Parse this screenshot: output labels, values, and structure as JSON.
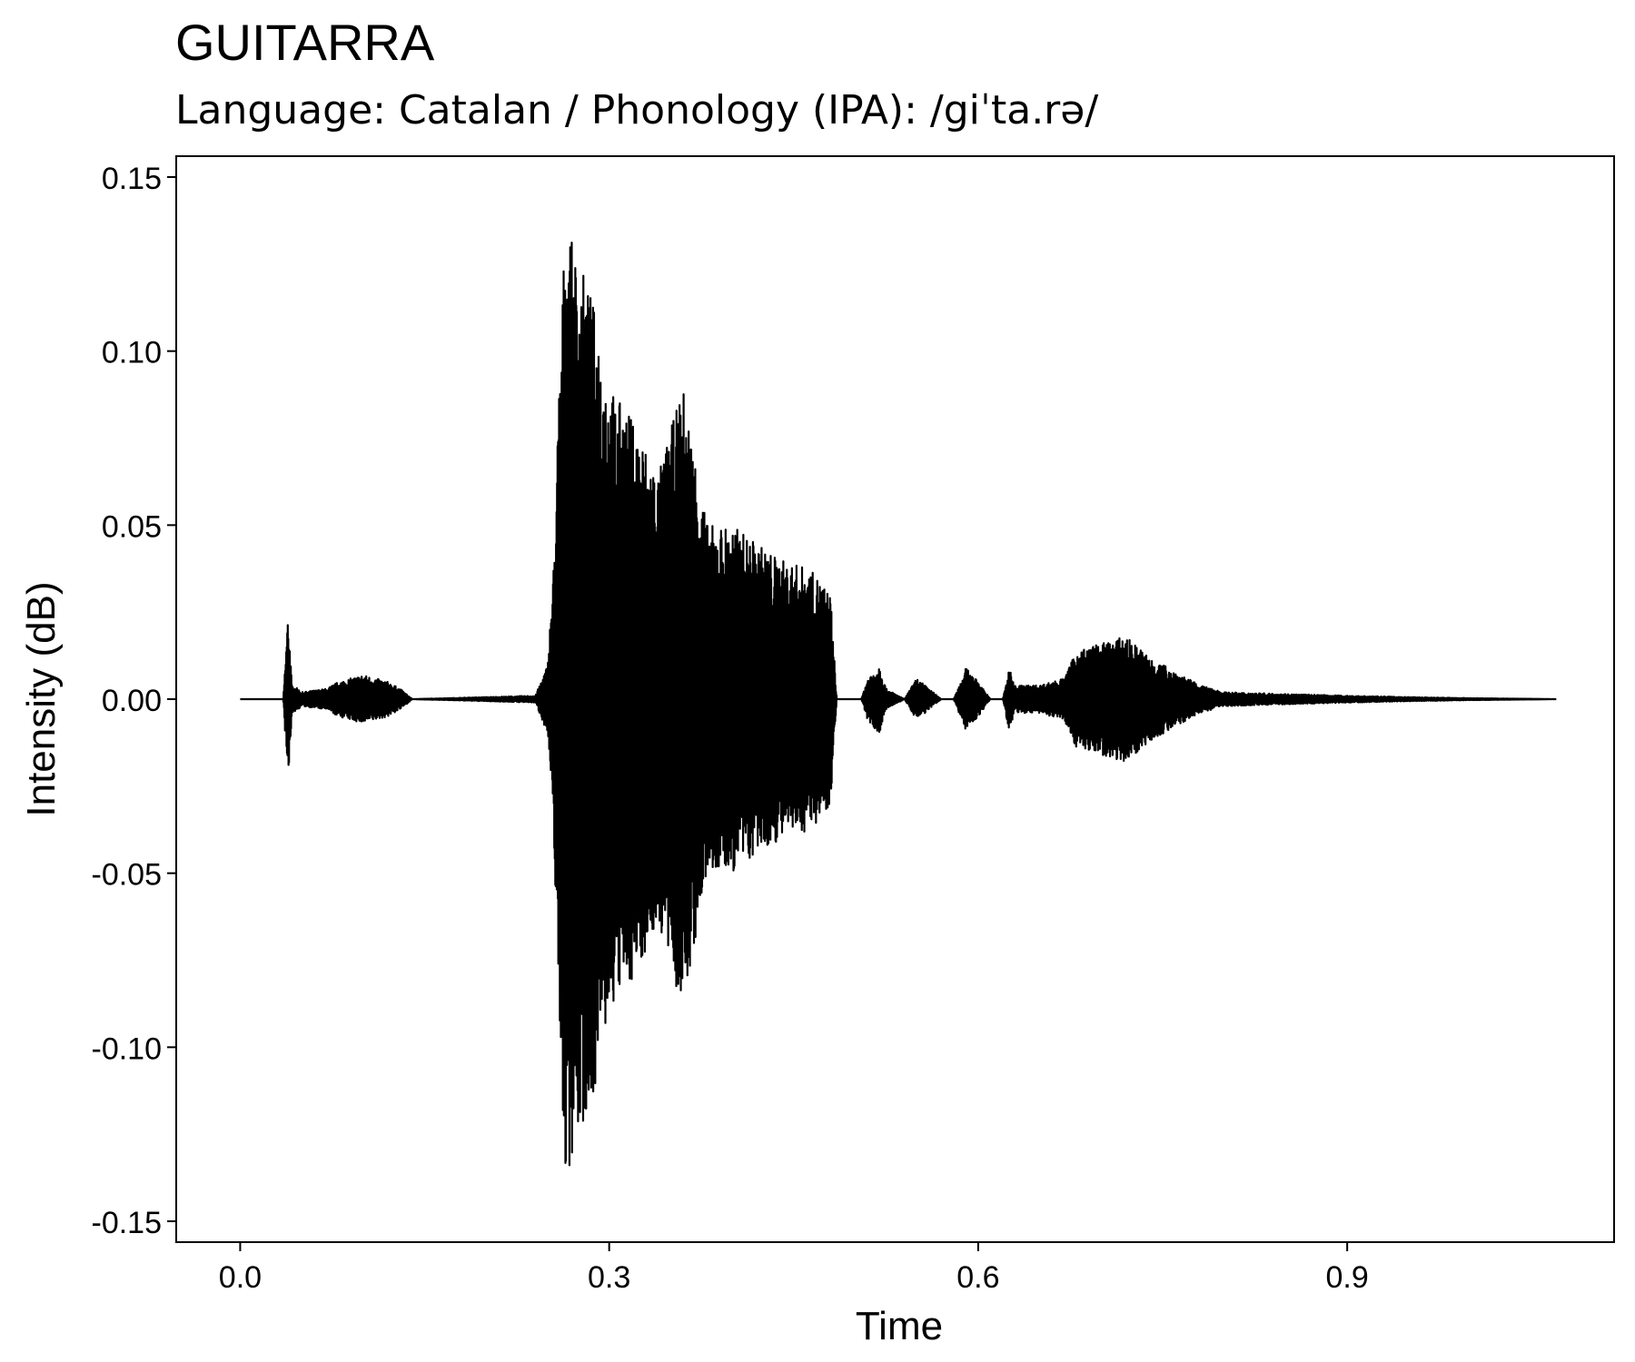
{
  "chart_data": {
    "type": "line",
    "title": "GUITARRA",
    "subtitle": "Language: Catalan / Phonology (IPA): /giˈta.rə/",
    "xlabel": "Time",
    "ylabel": "Intensity (dB)",
    "xlim": [
      -0.052,
      1.117
    ],
    "ylim": [
      -0.156,
      0.156
    ],
    "x_ticks": [
      0.0,
      0.3,
      0.6,
      0.9
    ],
    "x_tick_labels": [
      "0.0",
      "0.3",
      "0.6",
      "0.9"
    ],
    "y_ticks": [
      0.15,
      0.1,
      0.05,
      0.0,
      -0.05,
      -0.1,
      -0.15
    ],
    "y_tick_labels": [
      "0.15",
      "0.10",
      "0.05",
      "0.00",
      "-0.05",
      "-0.10",
      "-0.15"
    ],
    "grid": false,
    "legend": "none",
    "line_color": "#000000",
    "series": [
      {
        "x": [
          0.0,
          0.035,
          0.039,
          0.042,
          0.047,
          0.05,
          0.07,
          0.08,
          0.1,
          0.12,
          0.13,
          0.14,
          0.24,
          0.25,
          0.255,
          0.26,
          0.265,
          0.27,
          0.28,
          0.29,
          0.3,
          0.32,
          0.34,
          0.36,
          0.38,
          0.4,
          0.42,
          0.44,
          0.46,
          0.47,
          0.48,
          0.485,
          0.5,
          0.505,
          0.51,
          0.52,
          0.525,
          0.54,
          0.55,
          0.56,
          0.57,
          0.58,
          0.59,
          0.6,
          0.61,
          0.62,
          0.625,
          0.63,
          0.65,
          0.67,
          0.68,
          0.7,
          0.72,
          0.74,
          0.76,
          0.78,
          0.8,
          0.85,
          0.9,
          0.95,
          1.0,
          1.07
        ],
        "amp": [
          0.0,
          0.0,
          0.026,
          0.004,
          0.003,
          0.002,
          0.003,
          0.005,
          0.007,
          0.005,
          0.003,
          0.0,
          0.001,
          0.01,
          0.04,
          0.1,
          0.143,
          0.13,
          0.122,
          0.11,
          0.09,
          0.08,
          0.065,
          0.09,
          0.05,
          0.05,
          0.045,
          0.04,
          0.038,
          0.035,
          0.03,
          0.0,
          0.0,
          0.0,
          0.006,
          0.01,
          0.003,
          0.0,
          0.006,
          0.003,
          0.0,
          0.0,
          0.009,
          0.005,
          0.0,
          0.0,
          0.009,
          0.004,
          0.004,
          0.006,
          0.014,
          0.016,
          0.018,
          0.012,
          0.008,
          0.004,
          0.002,
          0.0015,
          0.001,
          0.0006,
          0.0003,
          0.0
        ]
      }
    ]
  }
}
